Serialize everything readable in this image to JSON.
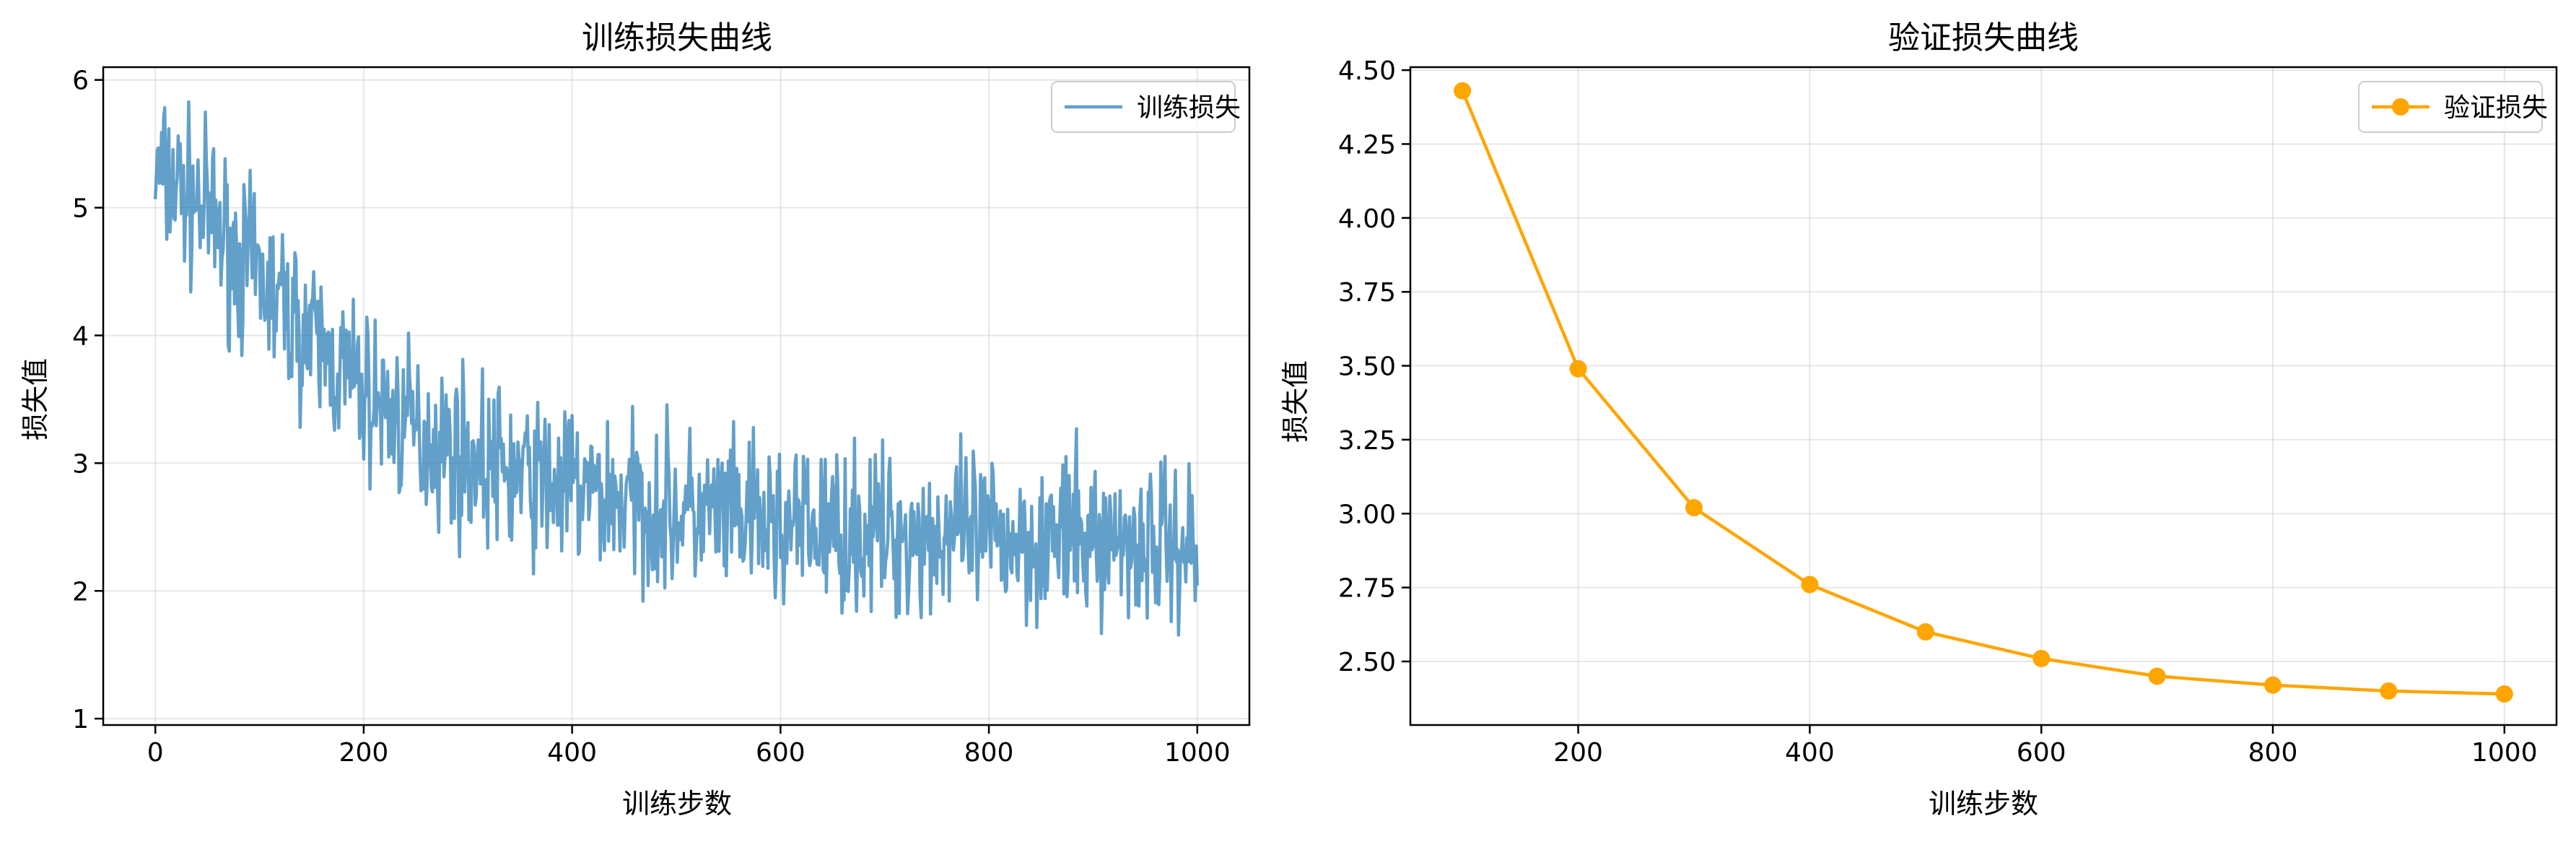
{
  "colors": {
    "train": "#1f77b4",
    "val": "#ffa500",
    "grid": "#b0b0b0",
    "frame": "#000000"
  },
  "chart_data": [
    {
      "type": "line",
      "title": "训练损失曲线",
      "xlabel": "训练步数",
      "ylabel": "损失值",
      "xlim": [
        -50,
        1050
      ],
      "ylim": [
        0.95,
        6.1
      ],
      "xticks": [
        0,
        200,
        400,
        600,
        800,
        1000
      ],
      "yticks": [
        1,
        2,
        3,
        4,
        5,
        6
      ],
      "ytick_labels": [
        "1",
        "2",
        "3",
        "4",
        "5",
        "6"
      ],
      "grid": true,
      "legend": "top-right",
      "line_opacity": 0.7,
      "noise_seed": 7,
      "series": [
        {
          "name": "训练损失",
          "approximation": "dense noisy trace (~1000 steps) summarized by trend anchors and noise amplitude",
          "trend_x": [
            0,
            25,
            50,
            75,
            100,
            150,
            200,
            250,
            300,
            350,
            400,
            500,
            600,
            700,
            800,
            900,
            1000
          ],
          "trend_y": [
            5.25,
            5.15,
            4.95,
            4.65,
            4.45,
            3.95,
            3.55,
            3.25,
            3.05,
            2.9,
            2.8,
            2.62,
            2.5,
            2.45,
            2.42,
            2.4,
            2.38
          ],
          "noise_amplitude": 0.55,
          "points": 1001
        }
      ]
    },
    {
      "type": "line",
      "title": "验证损失曲线",
      "xlabel": "训练步数",
      "ylabel": "损失值",
      "xlim": [
        55,
        1045
      ],
      "ylim": [
        2.285,
        4.51
      ],
      "xticks": [
        200,
        400,
        600,
        800,
        1000
      ],
      "yticks": [
        2.5,
        2.75,
        3.0,
        3.25,
        3.5,
        3.75,
        4.0,
        4.25,
        4.5
      ],
      "ytick_labels": [
        "2.50",
        "2.75",
        "3.00",
        "3.25",
        "3.50",
        "3.75",
        "4.00",
        "4.25",
        "4.50"
      ],
      "grid": true,
      "legend": "top-right",
      "series": [
        {
          "name": "验证损失",
          "marker": "circle",
          "x": [
            100,
            200,
            300,
            400,
            500,
            600,
            700,
            800,
            900,
            1000
          ],
          "y": [
            4.43,
            3.49,
            3.02,
            2.76,
            2.6,
            2.51,
            2.45,
            2.42,
            2.4,
            2.39
          ]
        }
      ]
    }
  ]
}
